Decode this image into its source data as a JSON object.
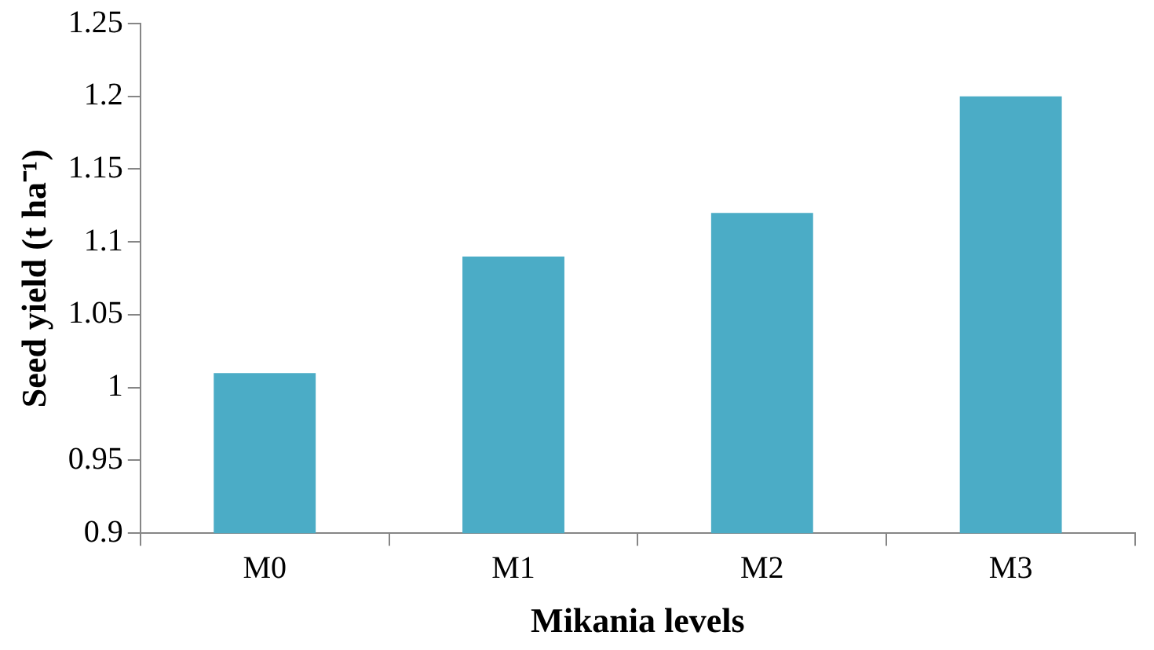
{
  "chart_data": {
    "type": "bar",
    "xlabel": "Mikania levels",
    "ylabel": "Seed yield (t ha⁻¹)",
    "categories": [
      "M0",
      "M1",
      "M2",
      "M3"
    ],
    "values": [
      1.01,
      1.09,
      1.12,
      1.2
    ],
    "color": "#4bacc6",
    "ylim": [
      0.9,
      1.25
    ],
    "yticks": [
      0.9,
      0.95,
      1,
      1.05,
      1.1,
      1.15,
      1.2,
      1.25
    ],
    "grid": false,
    "legend": false
  }
}
